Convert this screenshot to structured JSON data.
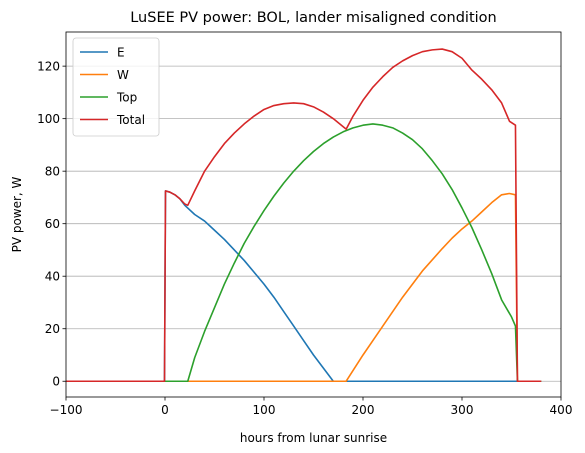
{
  "chart_data": {
    "type": "line",
    "title": "LuSEE PV power: BOL, lander misaligned condition",
    "xlabel": "hours from lunar sunrise",
    "ylabel": "PV power, W",
    "xlim": [
      -100,
      400
    ],
    "ylim": [
      -6,
      133
    ],
    "x_ticks": [
      -100,
      0,
      100,
      200,
      300,
      400
    ],
    "y_ticks": [
      0,
      20,
      40,
      60,
      80,
      100,
      120
    ],
    "x_tick_labels": [
      "−100",
      "0",
      "100",
      "200",
      "300",
      "400"
    ],
    "y_tick_labels": [
      "0",
      "20",
      "40",
      "60",
      "80",
      "100",
      "120"
    ],
    "grid": "horizontal",
    "legend_position": "top-left",
    "series": [
      {
        "name": "E",
        "color": "#1f77b4",
        "x": [
          -100,
          -0.5,
          0.5,
          5,
          10,
          15,
          20,
          30,
          40,
          50,
          60,
          70,
          80,
          90,
          100,
          110,
          120,
          130,
          140,
          150,
          160,
          170,
          183,
          200,
          300,
          355,
          380
        ],
        "y": [
          0,
          0,
          72.5,
          72,
          71,
          69.5,
          67,
          63.5,
          61,
          57.5,
          54,
          50,
          46,
          41.5,
          37,
          32,
          26.5,
          21,
          15.5,
          10,
          5,
          0,
          0,
          0,
          0,
          0,
          0
        ]
      },
      {
        "name": "W",
        "color": "#ff7f0e",
        "x": [
          -100,
          0,
          100,
          183,
          200,
          220,
          240,
          260,
          280,
          290,
          300,
          310,
          320,
          330,
          340,
          348,
          354,
          356,
          380
        ],
        "y": [
          0,
          0,
          0,
          0,
          10,
          21,
          32,
          42,
          50.5,
          54.5,
          58,
          61,
          64.5,
          68,
          71,
          71.5,
          71,
          0,
          0
        ]
      },
      {
        "name": "Top",
        "color": "#2ca02c",
        "x": [
          -100,
          0,
          23,
          30,
          40,
          50,
          60,
          70,
          80,
          90,
          100,
          110,
          120,
          130,
          140,
          150,
          160,
          170,
          180,
          190,
          200,
          210,
          220,
          230,
          240,
          250,
          260,
          270,
          280,
          290,
          300,
          310,
          320,
          330,
          340,
          350,
          354,
          356,
          380
        ],
        "y": [
          0,
          0,
          0,
          9,
          19,
          28,
          37,
          45,
          52.5,
          59,
          65,
          70.5,
          75.5,
          80,
          84,
          87.5,
          90.5,
          93,
          95,
          96.5,
          97.5,
          98,
          97.5,
          96.5,
          94.5,
          92,
          88.5,
          84,
          79,
          73,
          66,
          58.5,
          50,
          41,
          31,
          24.5,
          21,
          0,
          0
        ]
      },
      {
        "name": "Total",
        "color": "#d62728",
        "x": [
          -100,
          -0.5,
          0.5,
          5,
          10,
          15,
          20,
          23,
          30,
          40,
          50,
          60,
          70,
          80,
          90,
          100,
          110,
          120,
          130,
          140,
          150,
          160,
          170,
          183,
          190,
          200,
          210,
          220,
          230,
          240,
          250,
          260,
          270,
          280,
          290,
          300,
          310,
          320,
          330,
          340,
          348,
          354,
          356,
          380
        ],
        "y": [
          0,
          0,
          72.5,
          72,
          71,
          69.5,
          67.5,
          67,
          72.5,
          80,
          85.5,
          90.5,
          94.5,
          98,
          101,
          103.5,
          105,
          105.7,
          106,
          105.7,
          104.5,
          102.5,
          100,
          96,
          101,
          107,
          112,
          116,
          119.5,
          122,
          124,
          125.5,
          126.2,
          126.5,
          125.5,
          123,
          118.5,
          115,
          111,
          106,
          99,
          97.5,
          0,
          0
        ]
      }
    ]
  }
}
